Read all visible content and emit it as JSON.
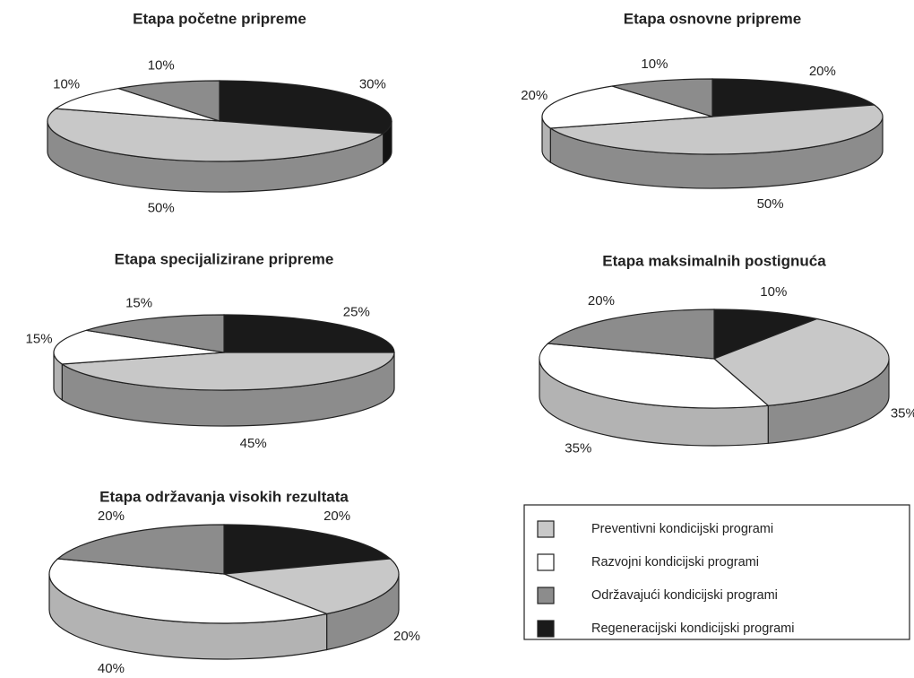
{
  "legend": {
    "labels": [
      "Preventivni kondicijski programi",
      "Razvojni kondicijski programi",
      "Održavajući kondicijski programi",
      "Regeneracijski kondicijski programi"
    ],
    "colors": [
      "#c8c8c8",
      "#ffffff",
      "#8c8c8c",
      "#1a1a1a"
    ]
  },
  "chart_data": [
    {
      "type": "pie",
      "title": "Etapa početne pripreme",
      "values": [
        50,
        10,
        10,
        30
      ],
      "value_labels": [
        "50%",
        "10%",
        "10%",
        "30%"
      ]
    },
    {
      "type": "pie",
      "title": "Etapa osnovne pripreme",
      "values": [
        50,
        20,
        10,
        20
      ],
      "value_labels": [
        "50%",
        "20%",
        "10%",
        "20%"
      ]
    },
    {
      "type": "pie",
      "title": "Etapa specijalizirane pripreme",
      "values": [
        45,
        15,
        15,
        25
      ],
      "value_labels": [
        "45%",
        "15%",
        "15%",
        "25%"
      ]
    },
    {
      "type": "pie",
      "title": "Etapa maksimalnih postignuća",
      "values": [
        35,
        35,
        20,
        10
      ],
      "value_labels": [
        "35%",
        "35%",
        "20%",
        "10%"
      ]
    },
    {
      "type": "pie",
      "title": "Etapa održavanja visokih rezultata",
      "values": [
        20,
        40,
        20,
        20
      ],
      "value_labels": [
        "20%",
        "40%",
        "20%",
        "20%"
      ]
    }
  ]
}
